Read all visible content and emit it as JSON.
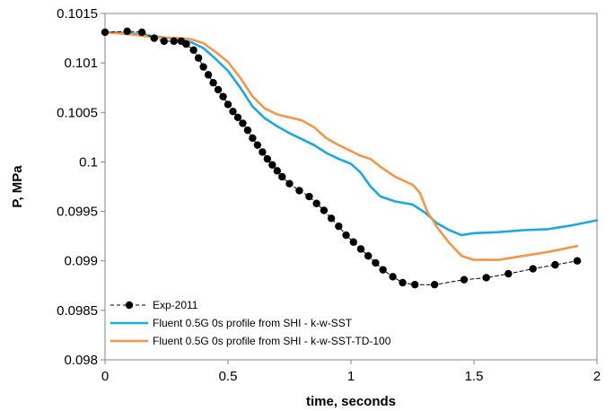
{
  "chart_data": {
    "type": "line",
    "title": "",
    "xlabel": "time, seconds",
    "ylabel": "P, MPa",
    "xlim": [
      0,
      2
    ],
    "ylim": [
      0.098,
      0.1015
    ],
    "xticks": [
      0,
      0.5,
      1,
      1.5,
      2
    ],
    "xtick_labels": [
      "0",
      "0.5",
      "1",
      "1.5",
      "2"
    ],
    "yticks": [
      0.098,
      0.0985,
      0.099,
      0.0995,
      0.1,
      0.1005,
      0.101,
      0.1015
    ],
    "ytick_labels": [
      "0.098",
      "0.0985",
      "0.099",
      "0.0995",
      "0.1",
      "0.1005",
      "0.101",
      "0.1015"
    ],
    "grid": false,
    "legend_position": "bottom-left",
    "series": [
      {
        "name": "Exp-2011",
        "color": "#000000",
        "style": "dashed-markers",
        "x": [
          0,
          0.09,
          0.15,
          0.2,
          0.24,
          0.28,
          0.31,
          0.33,
          0.36,
          0.38,
          0.4,
          0.42,
          0.44,
          0.46,
          0.48,
          0.5,
          0.52,
          0.54,
          0.56,
          0.58,
          0.6,
          0.62,
          0.64,
          0.66,
          0.68,
          0.7,
          0.72,
          0.75,
          0.79,
          0.83,
          0.86,
          0.89,
          0.92,
          0.95,
          0.98,
          1.01,
          1.04,
          1.07,
          1.1,
          1.13,
          1.17,
          1.21,
          1.26,
          1.34,
          1.46,
          1.55,
          1.64,
          1.74,
          1.83,
          1.92
        ],
        "y": [
          0.10131,
          0.10132,
          0.10131,
          0.10125,
          0.10122,
          0.10122,
          0.10122,
          0.10119,
          0.10113,
          0.10105,
          0.10096,
          0.10088,
          0.1008,
          0.10073,
          0.10066,
          0.10058,
          0.10051,
          0.10045,
          0.10039,
          0.10032,
          0.10024,
          0.10017,
          0.1001,
          0.10003,
          0.09997,
          0.09991,
          0.09985,
          0.09978,
          0.09971,
          0.09965,
          0.09958,
          0.09951,
          0.09943,
          0.09935,
          0.09926,
          0.09919,
          0.09912,
          0.09905,
          0.09898,
          0.09891,
          0.09884,
          0.09878,
          0.09876,
          0.09876,
          0.09881,
          0.09883,
          0.09887,
          0.09892,
          0.09896,
          0.099
        ]
      },
      {
        "name": "Fluent 0.5G 0s profile from SHI - k-w-SST",
        "color": "#1BA9E3",
        "style": "solid",
        "x": [
          0,
          0.1,
          0.2,
          0.3,
          0.35,
          0.4,
          0.45,
          0.5,
          0.55,
          0.6,
          0.65,
          0.7,
          0.75,
          0.8,
          0.85,
          0.9,
          0.95,
          1.0,
          1.04,
          1.08,
          1.12,
          1.18,
          1.25,
          1.3,
          1.35,
          1.4,
          1.45,
          1.5,
          1.6,
          1.7,
          1.8,
          1.9,
          2.0
        ],
        "y": [
          0.10131,
          0.1013,
          0.10127,
          0.10124,
          0.10121,
          0.10115,
          0.10104,
          0.10092,
          0.10075,
          0.10056,
          0.10044,
          0.10036,
          0.10029,
          0.10023,
          0.10017,
          0.10009,
          0.10003,
          0.09998,
          0.09989,
          0.09975,
          0.09965,
          0.0996,
          0.09957,
          0.09949,
          0.09938,
          0.09931,
          0.09926,
          0.09928,
          0.09929,
          0.09931,
          0.09932,
          0.09936,
          0.09941
        ]
      },
      {
        "name": "Fluent 0.5G 0s profile from SHI - k-w-SST-TD-100",
        "color": "#F79646",
        "style": "solid",
        "x": [
          0,
          0.1,
          0.2,
          0.3,
          0.35,
          0.4,
          0.45,
          0.5,
          0.55,
          0.6,
          0.65,
          0.7,
          0.75,
          0.8,
          0.85,
          0.9,
          0.95,
          1.0,
          1.04,
          1.08,
          1.12,
          1.18,
          1.25,
          1.28,
          1.31,
          1.35,
          1.4,
          1.45,
          1.5,
          1.6,
          1.7,
          1.8,
          1.92
        ],
        "y": [
          0.10131,
          0.10129,
          0.10126,
          0.10125,
          0.10124,
          0.1012,
          0.10111,
          0.10101,
          0.10085,
          0.10066,
          0.10054,
          0.10048,
          0.10045,
          0.10042,
          0.10035,
          0.10024,
          0.10017,
          0.10011,
          0.10006,
          0.10003,
          0.09995,
          0.09985,
          0.09977,
          0.09969,
          0.0995,
          0.09934,
          0.09918,
          0.09905,
          0.09901,
          0.09901,
          0.09905,
          0.09909,
          0.09915
        ]
      }
    ]
  }
}
